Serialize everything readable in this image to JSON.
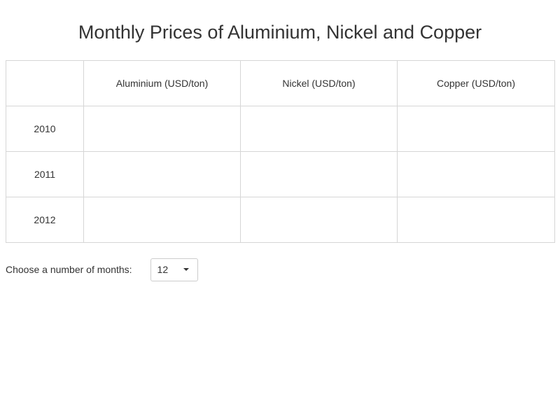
{
  "page": {
    "title": "Monthly Prices of Aluminium, Nickel and Copper"
  },
  "table": {
    "corner": "",
    "headers": [
      "Aluminium (USD/ton)",
      "Nickel (USD/ton)",
      "Copper (USD/ton)"
    ],
    "rows": [
      {
        "year": "2010",
        "cells": [
          "",
          "",
          ""
        ]
      },
      {
        "year": "2011",
        "cells": [
          "",
          "",
          ""
        ]
      },
      {
        "year": "2012",
        "cells": [
          "",
          "",
          ""
        ]
      }
    ]
  },
  "controls": {
    "months_label": "Choose a number of months:",
    "months_value": "12",
    "caret_icon": "chevron-down-icon"
  }
}
